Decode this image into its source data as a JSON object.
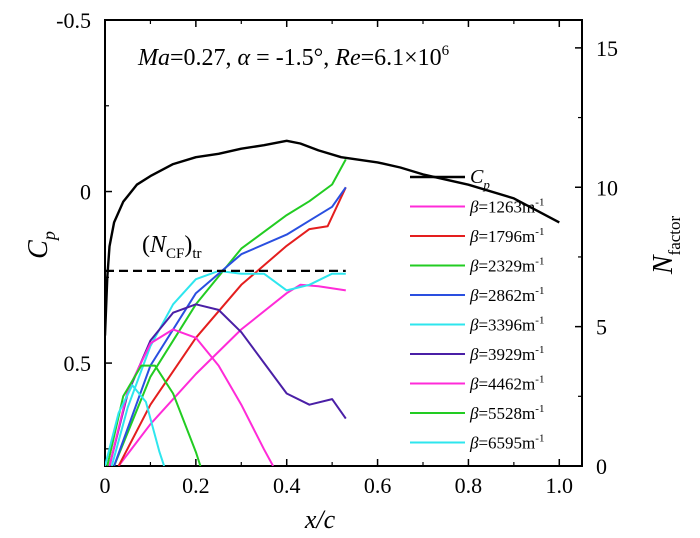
{
  "chart_data": {
    "type": "line",
    "title": {
      "ma_label": "Ma",
      "ma_value": "=0.27, ",
      "alpha_label": "α",
      "alpha_value": " = -1.5°, ",
      "re_label": "Re",
      "re_value": "=6.1×10",
      "re_exp": "6"
    },
    "xlabel": "x/c",
    "xlim": [
      0,
      1.05
    ],
    "ylabel_left": {
      "main": "C",
      "sub": "p"
    },
    "ylim_left": [
      0.8,
      -0.5
    ],
    "ylabel_right": {
      "main": "N",
      "sub": "factor"
    },
    "ylim_right": [
      0,
      16
    ],
    "x_ticks": [
      "0",
      "0.2",
      "0.4",
      "0.6",
      "0.8",
      "1.0"
    ],
    "x_tick_values": [
      0,
      0.2,
      0.4,
      0.6,
      0.8,
      1.0
    ],
    "y_left_ticks": [
      "-0.5",
      "0",
      "0.5"
    ],
    "y_left_tick_values": [
      -0.5,
      0,
      0.5
    ],
    "y_right_ticks": [
      "0",
      "5",
      "10",
      "15"
    ],
    "y_right_tick_values": [
      0,
      5,
      10,
      15
    ],
    "annotation": {
      "open": "(",
      "main": "N",
      "sub": "CF",
      "close": ")",
      "sub2": "tr",
      "value": 7.0,
      "x_end": 0.53
    },
    "cp_series": {
      "name_main": "C",
      "name_sub": "p",
      "color": "#000000",
      "points": [
        [
          0.0,
          0.42
        ],
        [
          0.005,
          0.25
        ],
        [
          0.01,
          0.16
        ],
        [
          0.02,
          0.09
        ],
        [
          0.04,
          0.03
        ],
        [
          0.07,
          -0.02
        ],
        [
          0.1,
          -0.045
        ],
        [
          0.15,
          -0.08
        ],
        [
          0.2,
          -0.1
        ],
        [
          0.25,
          -0.11
        ],
        [
          0.3,
          -0.125
        ],
        [
          0.35,
          -0.135
        ],
        [
          0.4,
          -0.148
        ],
        [
          0.43,
          -0.14
        ],
        [
          0.47,
          -0.12
        ],
        [
          0.52,
          -0.1
        ],
        [
          0.6,
          -0.085
        ],
        [
          0.65,
          -0.07
        ],
        [
          0.7,
          -0.05
        ],
        [
          0.8,
          -0.02
        ],
        [
          0.9,
          0.02
        ],
        [
          0.95,
          0.055
        ],
        [
          1.0,
          0.09
        ]
      ]
    },
    "series": [
      {
        "name_prefix": "β",
        "name_value": "=1263m",
        "name_exp": "-1",
        "color": "#ff2bd8",
        "points": [
          [
            0.03,
            0.0
          ],
          [
            0.1,
            1.5
          ],
          [
            0.2,
            3.3
          ],
          [
            0.3,
            4.9
          ],
          [
            0.4,
            6.2
          ],
          [
            0.43,
            6.5
          ],
          [
            0.47,
            6.45
          ],
          [
            0.53,
            6.3
          ]
        ]
      },
      {
        "name_prefix": "β",
        "name_value": "=1796m",
        "name_exp": "-1",
        "color": "#e41e1e",
        "points": [
          [
            0.03,
            0.0
          ],
          [
            0.1,
            2.2
          ],
          [
            0.2,
            4.6
          ],
          [
            0.3,
            6.5
          ],
          [
            0.4,
            7.9
          ],
          [
            0.45,
            8.5
          ],
          [
            0.49,
            8.6
          ],
          [
            0.53,
            10.0
          ]
        ]
      },
      {
        "name_prefix": "β",
        "name_value": "=2329m",
        "name_exp": "-1",
        "color": "#22cc22",
        "points": [
          [
            0.02,
            0.0
          ],
          [
            0.1,
            3.2
          ],
          [
            0.2,
            5.8
          ],
          [
            0.3,
            7.8
          ],
          [
            0.4,
            9.0
          ],
          [
            0.45,
            9.5
          ],
          [
            0.5,
            10.1
          ],
          [
            0.53,
            11.0
          ]
        ]
      },
      {
        "name_prefix": "β",
        "name_value": "=2862m",
        "name_exp": "-1",
        "color": "#2a4fe0",
        "points": [
          [
            0.02,
            0.0
          ],
          [
            0.1,
            3.6
          ],
          [
            0.2,
            6.2
          ],
          [
            0.3,
            7.6
          ],
          [
            0.4,
            8.3
          ],
          [
            0.45,
            8.8
          ],
          [
            0.5,
            9.3
          ],
          [
            0.53,
            10.0
          ]
        ]
      },
      {
        "name_prefix": "β",
        "name_value": "=3396m",
        "name_exp": "-1",
        "color": "#2ee6ee",
        "points": [
          [
            0.015,
            0.0
          ],
          [
            0.05,
            2.1
          ],
          [
            0.1,
            4.3
          ],
          [
            0.15,
            5.8
          ],
          [
            0.2,
            6.7
          ],
          [
            0.25,
            7.0
          ],
          [
            0.3,
            6.9
          ],
          [
            0.35,
            6.9
          ],
          [
            0.4,
            6.3
          ],
          [
            0.45,
            6.5
          ],
          [
            0.5,
            6.9
          ],
          [
            0.53,
            6.9
          ]
        ]
      },
      {
        "name_prefix": "β",
        "name_value": "=3929m",
        "name_exp": "-1",
        "color": "#4a1fa6",
        "points": [
          [
            0.01,
            0.0
          ],
          [
            0.05,
            2.6
          ],
          [
            0.1,
            4.5
          ],
          [
            0.15,
            5.5
          ],
          [
            0.2,
            5.8
          ],
          [
            0.25,
            5.6
          ],
          [
            0.3,
            4.8
          ],
          [
            0.35,
            3.7
          ],
          [
            0.4,
            2.6
          ],
          [
            0.45,
            2.2
          ],
          [
            0.5,
            2.4
          ],
          [
            0.53,
            1.7
          ]
        ]
      },
      {
        "name_prefix": "β",
        "name_value": "=4462m",
        "name_exp": "-1",
        "color": "#ff2bd8",
        "points": [
          [
            0.01,
            0.0
          ],
          [
            0.05,
            2.7
          ],
          [
            0.1,
            4.4
          ],
          [
            0.15,
            4.9
          ],
          [
            0.2,
            4.6
          ],
          [
            0.25,
            3.6
          ],
          [
            0.3,
            2.2
          ],
          [
            0.35,
            0.6
          ],
          [
            0.37,
            0.0
          ]
        ]
      },
      {
        "name_prefix": "β",
        "name_value": "=5528m",
        "name_exp": "-1",
        "color": "#22cc22",
        "points": [
          [
            0.005,
            0.0
          ],
          [
            0.04,
            2.5
          ],
          [
            0.08,
            3.6
          ],
          [
            0.11,
            3.6
          ],
          [
            0.15,
            2.6
          ],
          [
            0.2,
            0.5
          ],
          [
            0.21,
            0.0
          ]
        ]
      },
      {
        "name_prefix": "β",
        "name_value": "=6595m",
        "name_exp": "-1",
        "color": "#2ee6ee",
        "points": [
          [
            0.0,
            0.0
          ],
          [
            0.03,
            1.9
          ],
          [
            0.06,
            2.9
          ],
          [
            0.09,
            2.3
          ],
          [
            0.12,
            0.5
          ],
          [
            0.13,
            0.0
          ]
        ]
      }
    ]
  }
}
